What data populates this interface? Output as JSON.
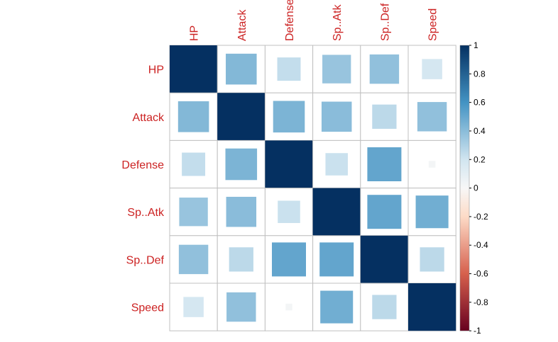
{
  "chart_data": {
    "type": "heatmap",
    "variables": [
      "HP",
      "Attack",
      "Defense",
      "Sp..Atk",
      "Sp..Def",
      "Speed"
    ],
    "matrix": [
      [
        1.0,
        0.42,
        0.24,
        0.36,
        0.38,
        0.18
      ],
      [
        0.42,
        1.0,
        0.44,
        0.4,
        0.26,
        0.38
      ],
      [
        0.24,
        0.44,
        1.0,
        0.22,
        0.51,
        0.02
      ],
      [
        0.36,
        0.4,
        0.22,
        1.0,
        0.51,
        0.47
      ],
      [
        0.38,
        0.26,
        0.51,
        0.51,
        1.0,
        0.26
      ],
      [
        0.18,
        0.38,
        0.02,
        0.47,
        0.26,
        1.0
      ]
    ],
    "colorbar": {
      "range": [
        -1,
        1
      ],
      "ticks": [
        "1",
        "0.8",
        "0.6",
        "0.4",
        "0.2",
        "0",
        "-0.2",
        "-0.4",
        "-0.6",
        "-0.8",
        "-1"
      ]
    },
    "colors": {
      "strong_positive": "#053061",
      "positive": "#4393c3",
      "neutral": "#f7f7f7",
      "negative": "#d6604d",
      "strong_negative": "#67001f",
      "label": "#cc2222",
      "grid": "#c0c0c0"
    },
    "grid": true,
    "legend_placement": "right"
  }
}
